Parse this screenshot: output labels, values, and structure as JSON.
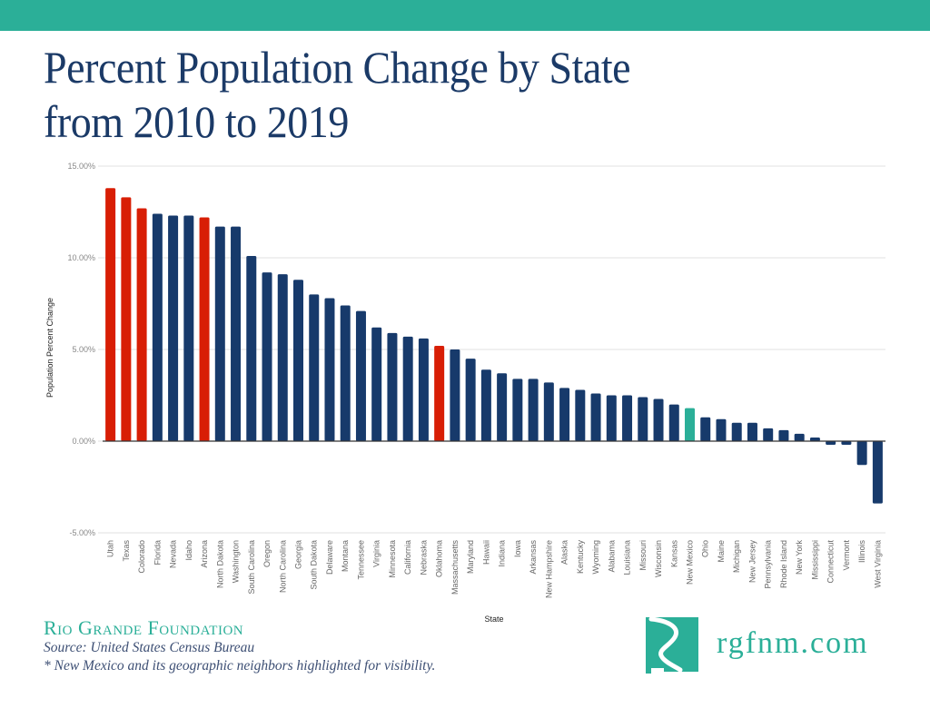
{
  "header": {
    "title_line1": "Percent Population Change by State",
    "title_line2": "from 2010 to 2019"
  },
  "colors": {
    "banner": "#2baf98",
    "default_bar": "#173a6b",
    "neighbor_bar": "#d81e05",
    "new_mexico_bar": "#2baf98",
    "title": "#1b3a67"
  },
  "chart_data": {
    "type": "bar",
    "title": "Percent Population Change by State from 2010 to 2019",
    "xlabel": "State",
    "ylabel": "Population Percent Change",
    "ylim": [
      -5,
      15
    ],
    "yticks": [
      -5,
      0,
      5,
      10,
      15
    ],
    "ytick_labels": [
      "-5.00%",
      "0.00%",
      "5.00%",
      "10.00%",
      "15.00%"
    ],
    "grid": true,
    "legend": "none",
    "categories": [
      "Utah",
      "Texas",
      "Colorado",
      "Florida",
      "Nevada",
      "Idaho",
      "Arizona",
      "North Dakota",
      "Washington",
      "South Carolina",
      "Oregon",
      "North Carolina",
      "Georgia",
      "South Dakota",
      "Delaware",
      "Montana",
      "Tennessee",
      "Virginia",
      "Minnesota",
      "California",
      "Nebraska",
      "Oklahoma",
      "Massachusetts",
      "Maryland",
      "Hawaii",
      "Indiana",
      "Iowa",
      "Arkansas",
      "New Hampshire",
      "Alaska",
      "Kentucky",
      "Wyoming",
      "Alabama",
      "Louisiana",
      "Missouri",
      "Wisconsin",
      "Kansas",
      "New Mexico",
      "Ohio",
      "Maine",
      "Michigan",
      "New Jersey",
      "Pennsylvania",
      "Rhode Island",
      "New York",
      "Mississippi",
      "Connecticut",
      "Vermont",
      "Illinois",
      "West Virginia"
    ],
    "values": [
      13.8,
      13.3,
      12.7,
      12.4,
      12.3,
      12.3,
      12.2,
      11.7,
      11.7,
      10.1,
      9.2,
      9.1,
      8.8,
      8.0,
      7.8,
      7.4,
      7.1,
      6.2,
      5.9,
      5.7,
      5.6,
      5.2,
      5.0,
      4.5,
      3.9,
      3.7,
      3.4,
      3.4,
      3.2,
      2.9,
      2.8,
      2.6,
      2.5,
      2.5,
      2.4,
      2.3,
      2.0,
      1.8,
      1.3,
      1.2,
      1.0,
      1.0,
      0.7,
      0.6,
      0.4,
      0.2,
      -0.2,
      -0.2,
      -1.3,
      -3.4
    ],
    "highlight": {
      "neighbor": [
        "Utah",
        "Texas",
        "Colorado",
        "Arizona",
        "Oklahoma"
      ],
      "focus": [
        "New Mexico"
      ]
    }
  },
  "footer": {
    "organization": "Rio Grande Foundation",
    "source": "Source: United States Census Bureau",
    "note": "* New Mexico and its geographic neighbors highlighted for visibility."
  },
  "logo": {
    "icon": "new-mexico-river-logo-icon",
    "text": "rgfnm.com"
  }
}
